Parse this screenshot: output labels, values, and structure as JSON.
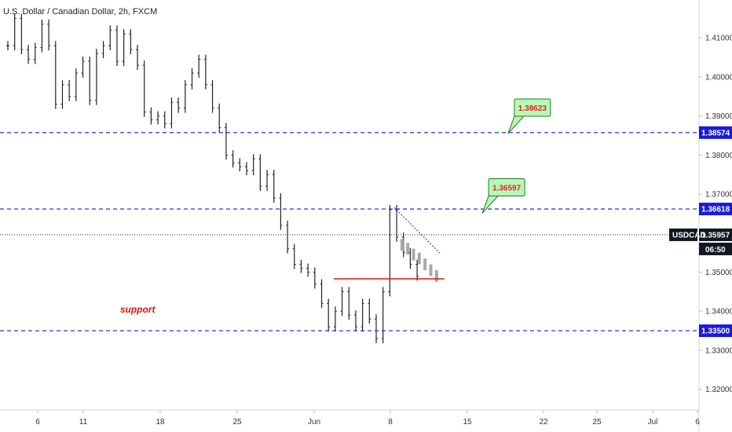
{
  "chart_data": {
    "type": "line",
    "title": "U.S. Dollar / Canadian Dollar, 2h, FXCM",
    "symbol": "USDCAD",
    "last_price": "1.35957",
    "countdown": "06:50",
    "ylim": [
      1.3147,
      1.4197
    ],
    "y_ticks": [
      "1.41000",
      "1.40000",
      "1.39000",
      "1.38000",
      "1.37000",
      "1.35000",
      "1.34000",
      "1.33000",
      "1.32000"
    ],
    "x_ticks": [
      "6",
      "11",
      "18",
      "25",
      "Jun",
      "8",
      "15",
      "22",
      "25",
      "Jul",
      "6"
    ],
    "x_tick_index": [
      0,
      2,
      7,
      12,
      17,
      22,
      27,
      32,
      37,
      42,
      47
    ],
    "close_series": [
      1.408,
      1.415,
      1.407,
      1.4045,
      1.4075,
      1.4135,
      1.408,
      1.393,
      1.398,
      1.395,
      1.401,
      1.404,
      1.394,
      1.406,
      1.408,
      1.412,
      1.404,
      1.411,
      1.407,
      1.403,
      1.391,
      1.389,
      1.39,
      1.388,
      1.3935,
      1.392,
      1.398,
      1.401,
      1.4045,
      1.398,
      1.392,
      1.387,
      1.38,
      1.378,
      1.377,
      1.376,
      1.379,
      1.372,
      1.375,
      1.369,
      1.362,
      1.356,
      1.352,
      1.351,
      1.35,
      1.347,
      1.342,
      1.336,
      1.34,
      1.345,
      1.339,
      1.336,
      1.342,
      1.338,
      1.333,
      1.345,
      1.366,
      1.359,
      1.355,
      1.352,
      1.349
    ],
    "close_series_x_start": 0,
    "close_series_x_step": 0.45,
    "faded_series": [
      1.357,
      1.356,
      1.3545,
      1.3535,
      1.352,
      1.3505,
      1.349
    ],
    "levels": [
      {
        "value": 1.38574,
        "label": "1.38574",
        "style": "dashed",
        "color": "#1a1adb"
      },
      {
        "value": 1.36618,
        "label": "1.36618",
        "style": "dashed",
        "color": "#1a1adb"
      },
      {
        "value": 1.335,
        "label": "1.33500",
        "style": "dashed",
        "color": "#1a1adb"
      },
      {
        "value": 1.35957,
        "label": "1.35957",
        "style": "dotted",
        "color": "#222222"
      }
    ],
    "neckline": {
      "value": 1.3483,
      "from_x": 21.5,
      "to_x": 28.8,
      "color": "#e01010"
    },
    "resistance_segment": {
      "value": 1.36618,
      "from_x": 25.6,
      "to_x": 40
    },
    "trendline": {
      "from": [
        25.5,
        1.3665
      ],
      "to": [
        28.5,
        1.3549
      ],
      "color": "#1a1adb"
    },
    "callouts": [
      {
        "text": "1.38623",
        "at_x": 33.0,
        "at_y": 1.3855
      },
      {
        "text": "1.36597",
        "at_x": 31.3,
        "at_y": 1.3651
      }
    ],
    "annotation": {
      "text": "support",
      "x": 7.4,
      "y": 1.3404
    },
    "grid": false
  },
  "colors": {
    "bars": "#222222",
    "faded_bars": "#a8a8a8",
    "level_tag_bg": "#1a1adb",
    "price_tag_bg": "#131722",
    "callout_bg": "#b9f7b9",
    "callout_border": "#1f7a1f"
  }
}
